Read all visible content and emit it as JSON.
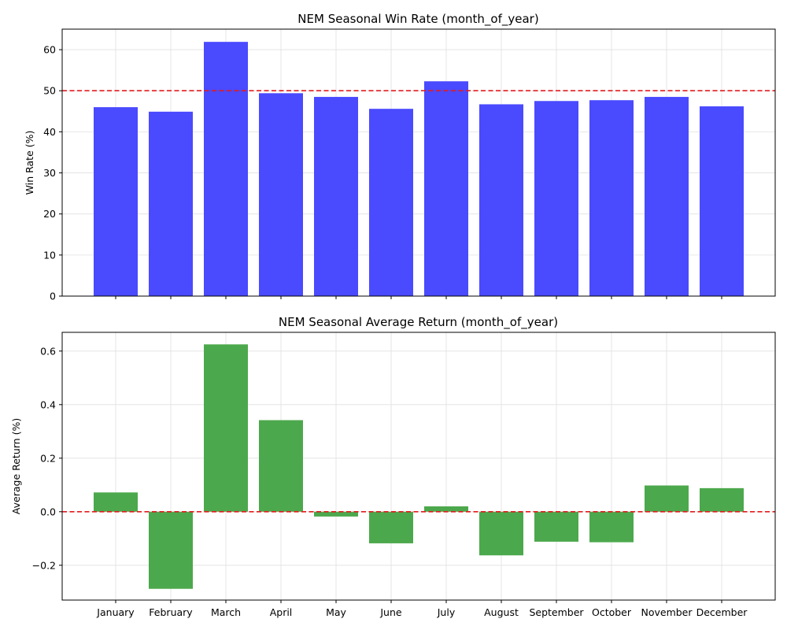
{
  "colors": {
    "bar_top": "#4a4aff",
    "bar_bottom": "#4ca84c",
    "ref_line": "#e31a1c",
    "grid": "#e0e0e0"
  },
  "chart_data": [
    {
      "type": "bar",
      "title": "NEM Seasonal Win Rate (month_of_year)",
      "xlabel": "",
      "ylabel": "Win Rate (%)",
      "categories": [
        "January",
        "February",
        "March",
        "April",
        "May",
        "June",
        "July",
        "August",
        "September",
        "October",
        "November",
        "December"
      ],
      "values": [
        46.0,
        44.9,
        61.9,
        49.4,
        48.5,
        45.6,
        52.3,
        46.7,
        47.5,
        47.7,
        48.5,
        46.2
      ],
      "ylim": [
        0,
        65
      ],
      "yticks": [
        0,
        10,
        20,
        30,
        40,
        50,
        60
      ],
      "ytick_labels": [
        "0",
        "10",
        "20",
        "30",
        "40",
        "50",
        "60"
      ],
      "reference_line": 50,
      "show_xtick_labels": false,
      "grid": true
    },
    {
      "type": "bar",
      "title": "NEM Seasonal Average Return (month_of_year)",
      "xlabel": "",
      "ylabel": "Average Return (%)",
      "categories": [
        "January",
        "February",
        "March",
        "April",
        "May",
        "June",
        "July",
        "August",
        "September",
        "October",
        "November",
        "December"
      ],
      "values": [
        0.072,
        -0.288,
        0.625,
        0.342,
        -0.018,
        -0.118,
        0.02,
        -0.163,
        -0.112,
        -0.114,
        0.098,
        0.088
      ],
      "ylim": [
        -0.33,
        0.67
      ],
      "yticks": [
        -0.2,
        0.0,
        0.2,
        0.4,
        0.6
      ],
      "ytick_labels": [
        "−0.2",
        "0.0",
        "0.2",
        "0.4",
        "0.6"
      ],
      "reference_line": 0,
      "show_xtick_labels": true,
      "grid": true
    }
  ]
}
